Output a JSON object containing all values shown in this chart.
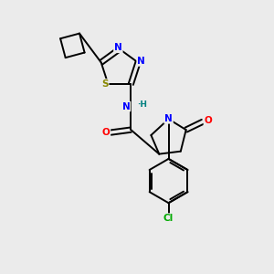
{
  "background_color": "#ebebeb",
  "bond_color": "#000000",
  "atom_colors": {
    "N": "#0000ff",
    "S": "#888800",
    "O": "#ff0000",
    "Cl": "#00aa00",
    "H": "#008080",
    "C": "#000000"
  },
  "figsize": [
    3.0,
    3.0
  ],
  "dpi": 100
}
